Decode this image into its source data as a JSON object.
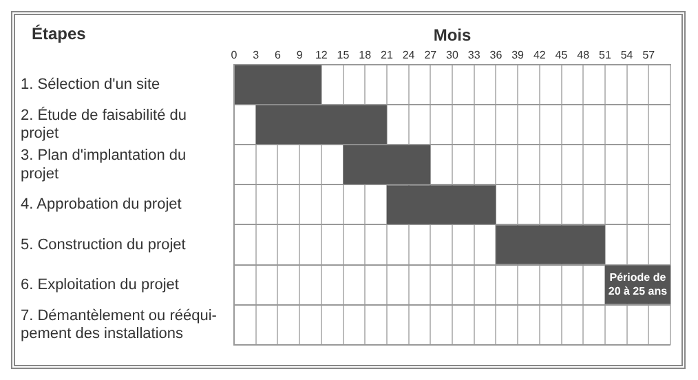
{
  "chart_data": {
    "type": "bar",
    "orientation": "horizontal",
    "xlabel": "Mois",
    "ylabel": "Étapes",
    "categories": [
      "1. Sélection d'un site",
      "2. Étude de faisabilité du projet",
      "3. Plan d'implantation du projet",
      "4. Approbation du projet",
      "5. Construction du projet",
      "6. Exploitation du projet",
      "7. Démantèlement ou rééqui- pement des installations"
    ],
    "base": [
      0,
      3,
      15,
      21,
      36,
      51,
      null
    ],
    "values": [
      12,
      18,
      12,
      15,
      15,
      9,
      null
    ],
    "color": "#555555",
    "xlim": [
      0,
      60
    ],
    "xticks": [
      0,
      3,
      6,
      9,
      12,
      15,
      18,
      21,
      24,
      27,
      30,
      33,
      36,
      39,
      42,
      45,
      48,
      51,
      54,
      57,
      {
        "value": 60,
        "label": null
      }
    ],
    "grid": true,
    "legend": false,
    "annotations": [
      {
        "text": "Période de 20 à 25 ans",
        "x": 55.5,
        "y": "6. Exploitation du projet"
      }
    ]
  }
}
